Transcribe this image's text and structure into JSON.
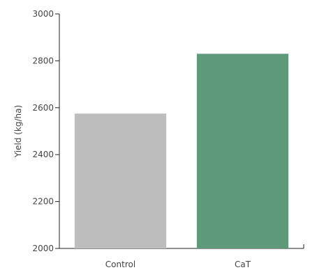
{
  "chart_data": {
    "type": "bar",
    "categories": [
      "Control",
      "CaT"
    ],
    "values": [
      2575,
      2830
    ],
    "colors": [
      "#bcbdbc",
      "#5e9a79"
    ],
    "ylabel": "Yield (kg/ha)",
    "xlabel": "",
    "ylim": [
      2000,
      3000
    ],
    "yticks": [
      2000,
      2200,
      2400,
      2600,
      2800,
      3000
    ],
    "grid": false,
    "legend": "none"
  }
}
